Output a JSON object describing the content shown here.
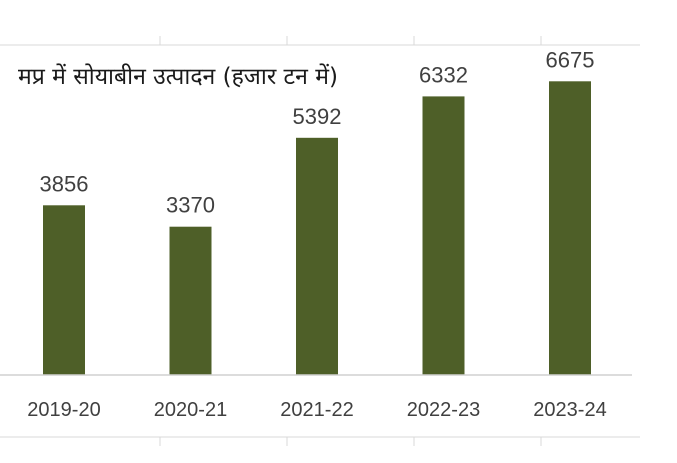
{
  "chart_data": {
    "type": "bar",
    "title": "मप्र में सोयाबीन उत्पादन (हजार टन में)",
    "categories": [
      "2019-20",
      "2020-21",
      "2021-22",
      "2022-23",
      "2023-24"
    ],
    "values": [
      3856,
      3370,
      5392,
      6332,
      6675
    ],
    "data_labels": [
      "3856",
      "3370",
      "5392",
      "6332",
      "6675"
    ],
    "xlabel": "",
    "ylabel": "",
    "ylim": [
      0,
      7500
    ],
    "grid": false,
    "legend": "none",
    "bar_color": "#4e5f28"
  }
}
